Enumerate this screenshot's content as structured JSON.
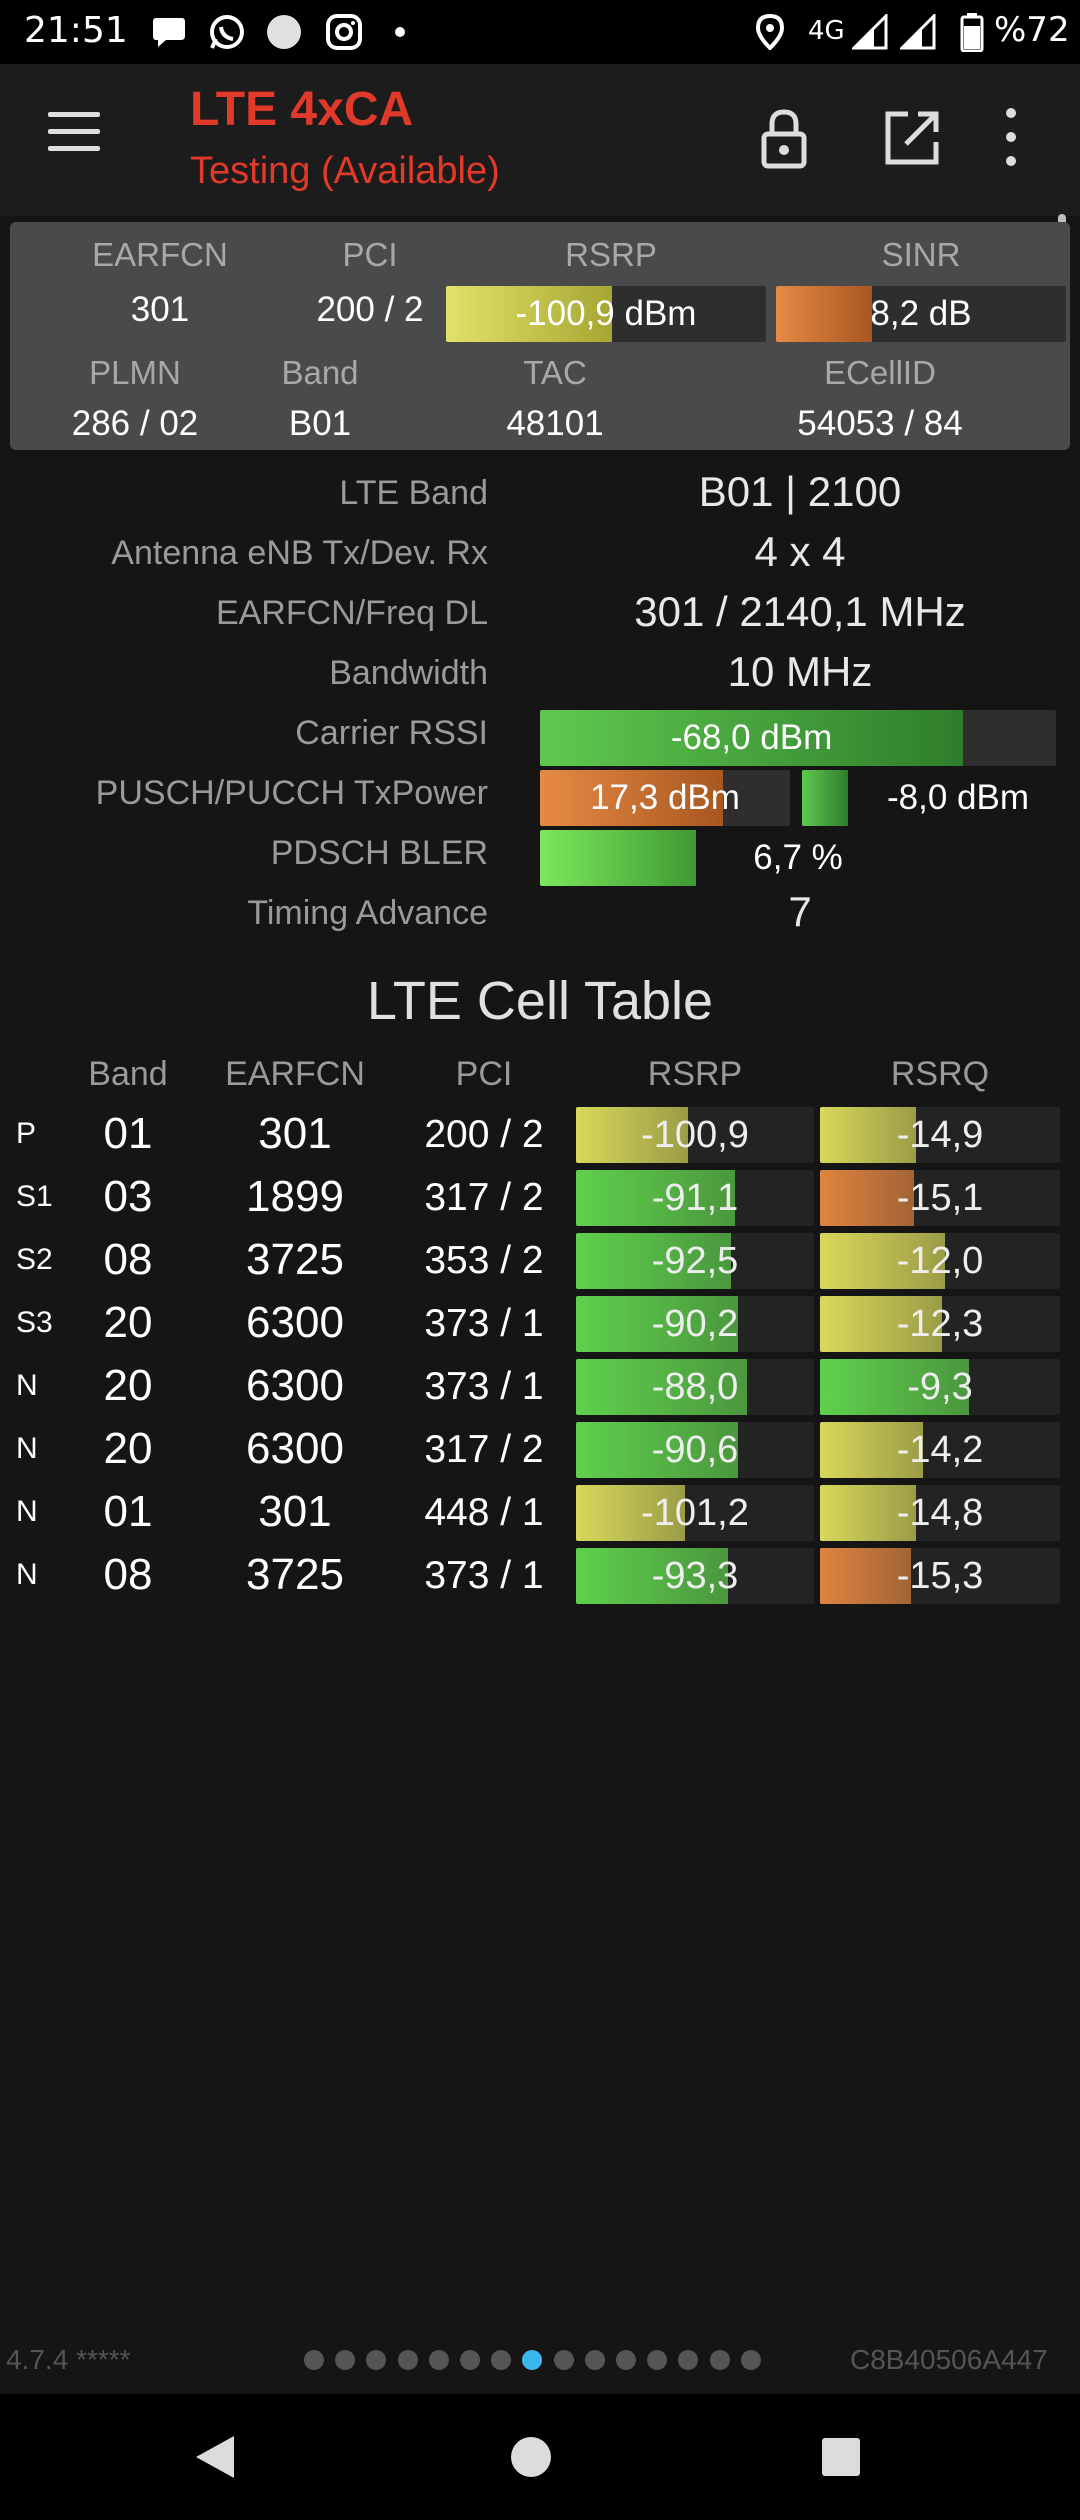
{
  "status_bar": {
    "time": "21:51",
    "network": "4G",
    "battery": "%72",
    "icons": [
      "chat-bubble-icon",
      "whatsapp-icon",
      "circle-icon",
      "instagram-icon",
      "dot-icon",
      "location-icon",
      "signal-icon",
      "signal-icon",
      "battery-icon"
    ]
  },
  "toolbar": {
    "title": "LTE 4xCA",
    "subtitle": "Testing (Available)",
    "icons": [
      "menu-icon",
      "lock-icon",
      "open-external-icon",
      "more-vert-icon"
    ]
  },
  "summary": {
    "headers": {
      "earfcn": "EARFCN",
      "pci": "PCI",
      "rsrp": "RSRP",
      "sinr": "SINR",
      "plmn": "PLMN",
      "band": "Band",
      "tac": "TAC",
      "ecellid": "ECellID"
    },
    "values": {
      "earfcn": "301",
      "pci": "200 / 2",
      "rsrp": "-100,9 dBm",
      "sinr": "8,2 dB",
      "plmn": "286 / 02",
      "band": "B01",
      "tac": "48101",
      "ecellid": "54053 / 84"
    },
    "rsrp_level": 0.52,
    "sinr_level": 0.33
  },
  "info": {
    "lte_band_label": "LTE Band",
    "lte_band_value": "B01 | 2100",
    "antenna_label": "Antenna eNB Tx/Dev. Rx",
    "antenna_value": "4 x 4",
    "earfcn_freq_label": "EARFCN/Freq DL",
    "earfcn_freq_value": "301 / 2140,1 MHz",
    "bandwidth_label": "Bandwidth",
    "bandwidth_value": "10 MHz",
    "rssi_label": "Carrier RSSI",
    "rssi_value": "-68,0 dBm",
    "rssi_level": 0.82,
    "txpower_label": "PUSCH/PUCCH TxPower",
    "pusch_value": "17,3 dBm",
    "pusch_level": 0.73,
    "pucch_value": "-8,0 dBm",
    "pucch_level": 0.28,
    "bler_label": "PDSCH BLER",
    "bler_value": "6,7 %",
    "bler_level": 0.3,
    "ta_label": "Timing Advance",
    "ta_value": "7"
  },
  "cell_table": {
    "title": "LTE Cell Table",
    "headers": {
      "band": "Band",
      "earfcn": "EARFCN",
      "pci": "PCI",
      "rsrp": "RSRP",
      "rsrq": "RSRQ"
    },
    "rows": [
      {
        "tag": "P",
        "band": "01",
        "earfcn": "301",
        "pci": "200 / 2",
        "rsrp": "-100,9",
        "rsrp_level": 0.47,
        "rsrp_color": "#d8d85a",
        "rsrq": "-14,9",
        "rsrq_level": 0.4,
        "rsrq_color": "#d8d85a"
      },
      {
        "tag": "S1",
        "band": "03",
        "earfcn": "1899",
        "pci": "317 / 2",
        "rsrp": "-91,1",
        "rsrp_level": 0.67,
        "rsrp_color": "#5fd14c",
        "rsrq": "-15,1",
        "rsrq_level": 0.39,
        "rsrq_color": "#e0843f"
      },
      {
        "tag": "S2",
        "band": "08",
        "earfcn": "3725",
        "pci": "353 / 2",
        "rsrp": "-92,5",
        "rsrp_level": 0.65,
        "rsrp_color": "#5fd14c",
        "rsrq": "-12,0",
        "rsrq_level": 0.52,
        "rsrq_color": "#d8d85a"
      },
      {
        "tag": "S3",
        "band": "20",
        "earfcn": "6300",
        "pci": "373 / 1",
        "rsrp": "-90,2",
        "rsrp_level": 0.68,
        "rsrp_color": "#5fd14c",
        "rsrq": "-12,3",
        "rsrq_level": 0.51,
        "rsrq_color": "#d8d85a"
      },
      {
        "tag": "N",
        "band": "20",
        "earfcn": "6300",
        "pci": "373 / 1",
        "rsrp": "-88,0",
        "rsrp_level": 0.72,
        "rsrp_color": "#5fd14c",
        "rsrq": "-9,3",
        "rsrq_level": 0.62,
        "rsrq_color": "#5fd14c"
      },
      {
        "tag": "N",
        "band": "20",
        "earfcn": "6300",
        "pci": "317 / 2",
        "rsrp": "-90,6",
        "rsrp_level": 0.68,
        "rsrp_color": "#5fd14c",
        "rsrq": "-14,2",
        "rsrq_level": 0.43,
        "rsrq_color": "#d8d85a"
      },
      {
        "tag": "N",
        "band": "01",
        "earfcn": "301",
        "pci": "448 / 1",
        "rsrp": "-101,2",
        "rsrp_level": 0.46,
        "rsrp_color": "#d8d85a",
        "rsrq": "-14,8",
        "rsrq_level": 0.4,
        "rsrq_color": "#d8d85a"
      },
      {
        "tag": "N",
        "band": "08",
        "earfcn": "3725",
        "pci": "373 / 1",
        "rsrp": "-93,3",
        "rsrp_level": 0.64,
        "rsrp_color": "#5fd14c",
        "rsrq": "-15,3",
        "rsrq_level": 0.38,
        "rsrq_color": "#e0843f"
      }
    ]
  },
  "footer": {
    "version": "4.7.4 *****",
    "device_id": "C8B40506A447",
    "page_count": 15,
    "active_page": 7
  },
  "nav_bar": {
    "icons": [
      "back-triangle-icon",
      "home-circle-icon",
      "recents-square-icon"
    ]
  }
}
